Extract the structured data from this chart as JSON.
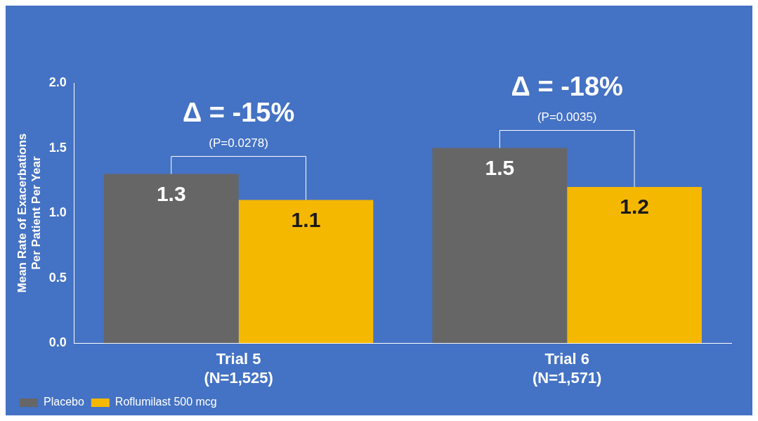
{
  "chart_data": {
    "type": "bar",
    "ylabel": "Mean Rate of Exacerbations\nPer Patient Per Year",
    "categories": [
      "Trial 5\n(N=1,525)",
      "Trial 6\n(N=1,571)"
    ],
    "series": [
      {
        "name": "Placebo",
        "color": "#666666",
        "values": [
          1.3,
          1.5
        ]
      },
      {
        "name": "Roflumilast 500 mcg",
        "color": "#f5b800",
        "values": [
          1.1,
          1.2
        ]
      }
    ],
    "ylim": [
      0,
      2
    ],
    "yticks": [
      {
        "value": 0,
        "label": "0.0"
      },
      {
        "value": 0.5,
        "label": "0.5"
      },
      {
        "value": 1,
        "label": "1.0"
      },
      {
        "value": 1.5,
        "label": "1.5"
      },
      {
        "value": 2,
        "label": "2.0"
      }
    ],
    "grid": false,
    "legend": "bottom left",
    "data_labels": true,
    "annotations": [
      "Δ = -15%",
      "(P=0.0278)",
      "Δ = -18%",
      "(P=0.0035)"
    ]
  }
}
